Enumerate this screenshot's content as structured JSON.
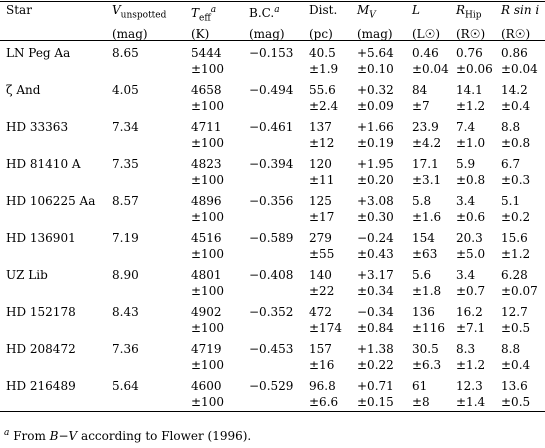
{
  "header": {
    "cols": [
      {
        "l1": "Star",
        "l2": ""
      },
      {
        "l1": "V",
        "l1sub": "unspotted",
        "l2": "(mag)"
      },
      {
        "l1": "T",
        "l1sub": "eff",
        "l1sup": "a",
        "l2": "(K)"
      },
      {
        "l1": "B.C.",
        "l1sup": "a",
        "l2": "(mag)"
      },
      {
        "l1": "Dist.",
        "l2": "(pc)"
      },
      {
        "l1": "M",
        "l1sub": "V",
        "l2": "(mag)"
      },
      {
        "l1": "L",
        "l2": "(L☉)"
      },
      {
        "l1": "R",
        "l1sub": "Hip",
        "l2": "(R☉)"
      },
      {
        "l1": "R sin i",
        "l2": "(R☉)"
      }
    ]
  },
  "rows": [
    {
      "star": "LN Peg Aa",
      "v": "8.65",
      "teff": "5444",
      "teff_err": "±100",
      "bc": "−0.153",
      "dist": "40.5",
      "dist_err": "±1.9",
      "mv": "+5.64",
      "mv_err": "±0.10",
      "l": "0.46",
      "l_err": "±0.04",
      "rhip": "0.76",
      "rhip_err": "±0.06",
      "rsini": "0.86",
      "rsini_err": "±0.04"
    },
    {
      "star": "ζ And",
      "v": "4.05",
      "teff": "4658",
      "teff_err": "±100",
      "bc": "−0.494",
      "dist": "55.6",
      "dist_err": "±2.4",
      "mv": "+0.32",
      "mv_err": "±0.09",
      "l": "84",
      "l_err": "±7",
      "rhip": "14.1",
      "rhip_err": "±1.2",
      "rsini": "14.2",
      "rsini_err": "±0.4"
    },
    {
      "star": "HD 33363",
      "v": "7.34",
      "teff": "4711",
      "teff_err": "±100",
      "bc": "−0.461",
      "dist": "137",
      "dist_err": "±12",
      "mv": "+1.66",
      "mv_err": "±0.19",
      "l": "23.9",
      "l_err": "±4.2",
      "rhip": "7.4",
      "rhip_err": "±1.0",
      "rsini": "8.8",
      "rsini_err": "±0.8"
    },
    {
      "star": "HD 81410 A",
      "v": "7.35",
      "teff": "4823",
      "teff_err": "±100",
      "bc": "−0.394",
      "dist": "120",
      "dist_err": "±11",
      "mv": "+1.95",
      "mv_err": "±0.20",
      "l": "17.1",
      "l_err": "±3.1",
      "rhip": "5.9",
      "rhip_err": "±0.8",
      "rsini": "6.7",
      "rsini_err": "±0.3"
    },
    {
      "star": "HD 106225 Aa",
      "v": "8.57",
      "teff": "4896",
      "teff_err": "±100",
      "bc": "−0.356",
      "dist": "125",
      "dist_err": "±17",
      "mv": "+3.08",
      "mv_err": "±0.30",
      "l": "5.8",
      "l_err": "±1.6",
      "rhip": "3.4",
      "rhip_err": "±0.6",
      "rsini": "5.1",
      "rsini_err": "±0.2"
    },
    {
      "star": "HD 136901",
      "v": "7.19",
      "teff": "4516",
      "teff_err": "±100",
      "bc": "−0.589",
      "dist": "279",
      "dist_err": "±55",
      "mv": "−0.24",
      "mv_err": "±0.43",
      "l": "154",
      "l_err": "±63",
      "rhip": "20.3",
      "rhip_err": "±5.0",
      "rsini": "15.6",
      "rsini_err": "±1.2"
    },
    {
      "star": "UZ Lib",
      "v": "8.90",
      "teff": "4801",
      "teff_err": "±100",
      "bc": "−0.408",
      "dist": "140",
      "dist_err": "±22",
      "mv": "+3.17",
      "mv_err": "±0.34",
      "l": "5.6",
      "l_err": "±1.8",
      "rhip": "3.4",
      "rhip_err": "±0.7",
      "rsini": "6.28",
      "rsini_err": "±0.07"
    },
    {
      "star": "HD 152178",
      "v": "8.43",
      "teff": "4902",
      "teff_err": "±100",
      "bc": "−0.352",
      "dist": "472",
      "dist_err": "±174",
      "mv": "−0.34",
      "mv_err": "±0.84",
      "l": "136",
      "l_err": "±116",
      "rhip": "16.2",
      "rhip_err": "±7.1",
      "rsini": "12.7",
      "rsini_err": "±0.5"
    },
    {
      "star": "HD 208472",
      "v": "7.36",
      "teff": "4719",
      "teff_err": "±100",
      "bc": "−0.453",
      "dist": "157",
      "dist_err": "±16",
      "mv": "+1.38",
      "mv_err": "±0.22",
      "l": "30.5",
      "l_err": "±6.3",
      "rhip": "8.3",
      "rhip_err": "±1.2",
      "rsini": "8.8",
      "rsini_err": "±0.4"
    },
    {
      "star": "HD 216489",
      "v": "5.64",
      "teff": "4600",
      "teff_err": "±100",
      "bc": "−0.529",
      "dist": "96.8",
      "dist_err": "±6.6",
      "mv": "+0.71",
      "mv_err": "±0.15",
      "l": "61",
      "l_err": "±8",
      "rhip": "12.3",
      "rhip_err": "±1.4",
      "rsini": "13.6",
      "rsini_err": "±0.5"
    }
  ],
  "footnote": {
    "mark": "a",
    "text_before": " From ",
    "bv": "B−V",
    "text_after": " according to Flower (1996)."
  }
}
